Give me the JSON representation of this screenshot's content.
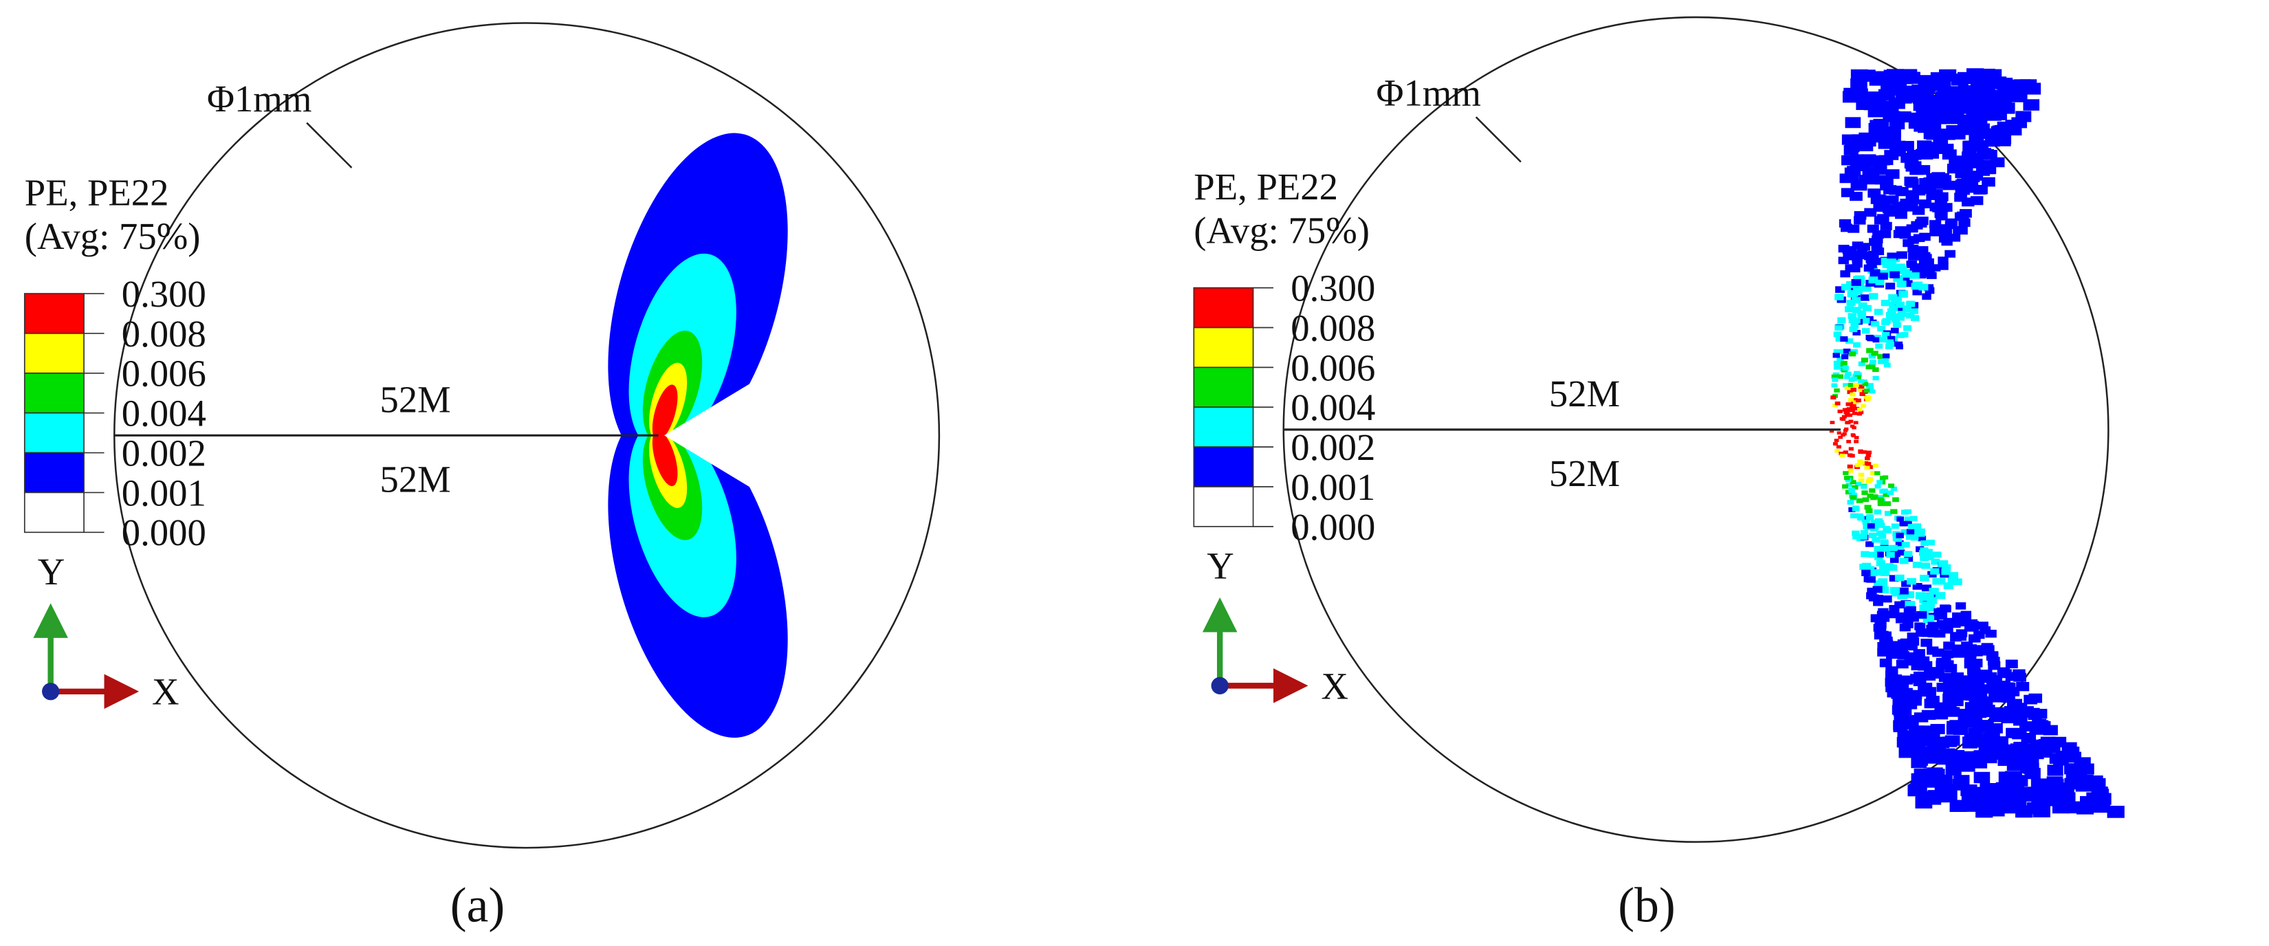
{
  "panels": [
    {
      "label": "(a)",
      "diameter_label": "Φ1mm",
      "pattern": "smooth",
      "legend": {
        "title": "PE, PE22",
        "subtitle": "(Avg: 75%)",
        "levels": [
          {
            "label": "0.300",
            "color": "#ff0000"
          },
          {
            "label": "0.008",
            "color": "#ffff00"
          },
          {
            "label": "0.006",
            "color": "#00dd00"
          },
          {
            "label": "0.004",
            "color": "#00ffff"
          },
          {
            "label": "0.002",
            "color": "#0000ff"
          },
          {
            "label": "0.001",
            "color": "#ffffff"
          },
          {
            "label": "0.000"
          }
        ]
      },
      "crack_labels": [
        "52M",
        "52M"
      ],
      "axes": {
        "y": "Y",
        "x": "X"
      }
    },
    {
      "label": "(b)",
      "diameter_label": "Φ1mm",
      "pattern": "scattered",
      "legend": {
        "title": "PE, PE22",
        "subtitle": "(Avg: 75%)",
        "levels": [
          {
            "label": "0.300",
            "color": "#ff0000"
          },
          {
            "label": "0.008",
            "color": "#ffff00"
          },
          {
            "label": "0.006",
            "color": "#00dd00"
          },
          {
            "label": "0.004",
            "color": "#00ffff"
          },
          {
            "label": "0.002",
            "color": "#0000ff"
          },
          {
            "label": "0.001",
            "color": "#ffffff"
          },
          {
            "label": "0.000"
          }
        ]
      },
      "crack_labels": [
        "52M",
        "52M"
      ],
      "axes": {
        "y": "Y",
        "x": "X"
      }
    }
  ]
}
